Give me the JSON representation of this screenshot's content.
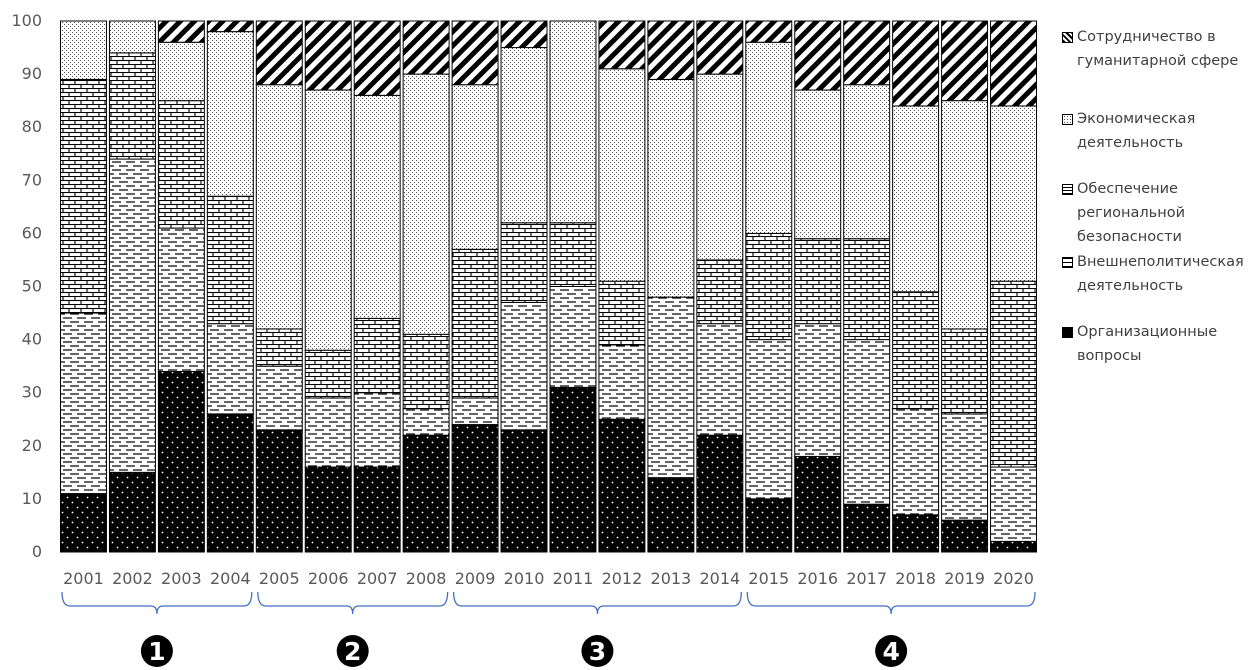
{
  "chart_data": {
    "type": "bar",
    "stacked": true,
    "title": "",
    "xlabel": "",
    "ylabel": "",
    "ylim": [
      0,
      100
    ],
    "yticks": [
      "0",
      "10",
      "20",
      "30",
      "40",
      "50",
      "60",
      "70",
      "80",
      "90",
      "100"
    ],
    "grid": false,
    "legend_position": "right",
    "categories": [
      "2001",
      "2002",
      "2003",
      "2004",
      "2005",
      "2006",
      "2007",
      "2008",
      "2009",
      "2010",
      "2011",
      "2012",
      "2013",
      "2014",
      "2015",
      "2016",
      "2017",
      "2018",
      "2019",
      "2020"
    ],
    "series": [
      {
        "name": "Организационные вопросы",
        "pattern": "solid-black",
        "values": [
          11,
          15,
          34,
          26,
          23,
          16,
          16,
          22,
          24,
          23,
          31,
          25,
          14,
          22,
          10,
          18,
          9,
          7,
          6,
          2
        ]
      },
      {
        "name": "Внешнеполитическая деятельность",
        "pattern": "dashes",
        "values": [
          34,
          59,
          27,
          17,
          12,
          13,
          14,
          5,
          5,
          24,
          19,
          14,
          34,
          21,
          30,
          25,
          31,
          20,
          20,
          14
        ]
      },
      {
        "name": "Обеспечение региональной безопасности",
        "pattern": "bricks",
        "values": [
          44,
          20,
          24,
          24,
          7,
          9,
          14,
          14,
          28,
          15,
          12,
          12,
          0,
          12,
          20,
          16,
          19,
          22,
          16,
          35
        ]
      },
      {
        "name": "Экономическая деятельность",
        "pattern": "dots",
        "values": [
          11,
          6,
          11,
          31,
          46,
          49,
          42,
          49,
          31,
          33,
          38,
          40,
          41,
          35,
          36,
          28,
          29,
          35,
          43,
          33
        ]
      },
      {
        "name": "Сотрудничество в гуманитарной сфере",
        "pattern": "diagonal",
        "values": [
          0,
          0,
          4,
          2,
          12,
          13,
          14,
          10,
          12,
          5,
          0,
          9,
          11,
          10,
          4,
          13,
          12,
          16,
          15,
          16
        ]
      }
    ],
    "periods": [
      {
        "label": "1",
        "from": "2001",
        "to": "2004"
      },
      {
        "label": "2",
        "from": "2005",
        "to": "2008"
      },
      {
        "label": "3",
        "from": "2009",
        "to": "2014"
      },
      {
        "label": "4",
        "from": "2015",
        "to": "2020"
      }
    ]
  },
  "legend": [
    {
      "label": "Сотрудничество в\nгуманитарной сфере",
      "pattern": "diagonal"
    },
    {
      "label": "Экономическая\nдеятельность",
      "pattern": "dots"
    },
    {
      "label": "Обеспечение\nрегиональной\nбезопасности",
      "pattern": "bricks"
    },
    {
      "label": "Внешнеполитическая\nдеятельность",
      "pattern": "dashes"
    },
    {
      "label": "Организационные\nвопросы",
      "pattern": "solid-black"
    }
  ],
  "colors": {
    "text": "#595959",
    "bracket": "#4472C4",
    "bar_outline": "#000000"
  }
}
